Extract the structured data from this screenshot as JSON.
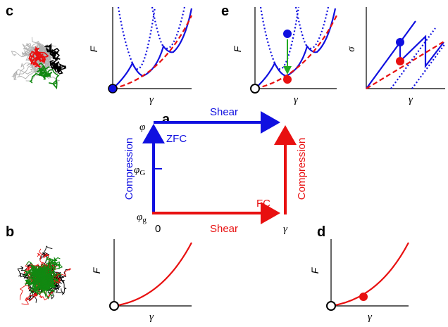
{
  "panel_c": {
    "letter": "c",
    "axis_y": "F",
    "axis_x": "γ"
  },
  "panel_e": {
    "letter": "e",
    "plot_force": {
      "axis_y": "F",
      "axis_x": "γ"
    },
    "plot_stress": {
      "axis_y": "σ",
      "axis_x": "γ"
    }
  },
  "panel_a": {
    "letter": "a",
    "top_arrow": "Shear",
    "left_arrow": "Compression",
    "left_label": "ZFC",
    "bottom_arrow": "Shear",
    "right_arrow": "Compression",
    "right_label": "FC",
    "phi_top": "φ",
    "phi_mid": {
      "symbol": "φ",
      "sub": "G"
    },
    "phi_bottom": {
      "symbol": "φ",
      "sub": "g"
    },
    "origin": "0",
    "gamma": "γ"
  },
  "panel_b": {
    "letter": "b",
    "axis_y": "F",
    "axis_x": "γ"
  },
  "panel_d": {
    "letter": "d",
    "axis_y": "F",
    "axis_x": "γ"
  }
}
